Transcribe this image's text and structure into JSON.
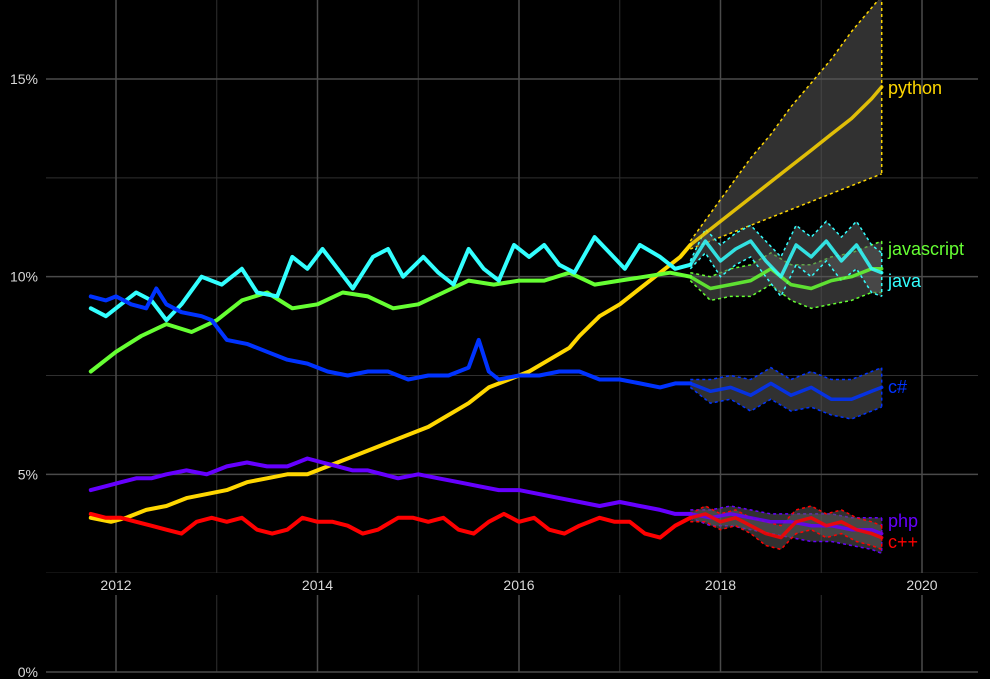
{
  "chart_data": {
    "type": "line",
    "title": "",
    "xlabel": "",
    "ylabel": "",
    "xlim": [
      2011.5,
      2020.5
    ],
    "ylim": [
      0,
      17.2
    ],
    "x_ticks": [
      2012,
      2014,
      2016,
      2018,
      2020
    ],
    "x_tick_labels": [
      "2012",
      "2014",
      "2016",
      "2018",
      "2020"
    ],
    "y_ticks": [
      0,
      5,
      10,
      15
    ],
    "y_tick_labels": [
      "0%",
      "5%",
      "10%",
      "15%"
    ],
    "y_minor_ticks": [
      2.5,
      7.5,
      12.5
    ],
    "x_minor_ticks": [
      2013,
      2015,
      2017,
      2019
    ],
    "grid": true,
    "background": "#000000",
    "forecast_start": 2017.7,
    "series": [
      {
        "name": "python",
        "color": "#ffd700",
        "x": [
          2011.75,
          2011.95,
          2012.1,
          2012.3,
          2012.5,
          2012.7,
          2012.9,
          2013.1,
          2013.3,
          2013.5,
          2013.7,
          2013.9,
          2014.1,
          2014.3,
          2014.5,
          2014.7,
          2014.9,
          2015.1,
          2015.3,
          2015.5,
          2015.7,
          2015.9,
          2016.1,
          2016.3,
          2016.5,
          2016.6,
          2016.8,
          2017.0,
          2017.2,
          2017.4,
          2017.6,
          2017.7
        ],
        "values": [
          3.9,
          3.8,
          3.9,
          4.1,
          4.2,
          4.4,
          4.5,
          4.6,
          4.8,
          4.9,
          5.0,
          5.0,
          5.2,
          5.4,
          5.6,
          5.8,
          6.0,
          6.2,
          6.5,
          6.8,
          7.2,
          7.4,
          7.6,
          7.9,
          8.2,
          8.5,
          9.0,
          9.3,
          9.7,
          10.1,
          10.5,
          10.8
        ],
        "forecast": {
          "x": [
            2017.7,
            2017.9,
            2018.1,
            2018.3,
            2018.5,
            2018.7,
            2018.9,
            2019.1,
            2019.3,
            2019.5,
            2019.6
          ],
          "values": [
            10.8,
            11.2,
            11.6,
            12.0,
            12.4,
            12.8,
            13.2,
            13.6,
            14.0,
            14.5,
            14.8
          ],
          "upper": [
            10.9,
            11.6,
            12.3,
            13.0,
            13.6,
            14.3,
            14.9,
            15.5,
            16.2,
            16.8,
            17.1
          ],
          "lower": [
            10.7,
            10.9,
            11.1,
            11.3,
            11.5,
            11.7,
            11.9,
            12.1,
            12.3,
            12.5,
            12.6
          ]
        }
      },
      {
        "name": "javascript",
        "color": "#66ff33",
        "x": [
          2011.75,
          2012.0,
          2012.25,
          2012.5,
          2012.75,
          2013.0,
          2013.25,
          2013.5,
          2013.75,
          2014.0,
          2014.25,
          2014.5,
          2014.75,
          2015.0,
          2015.25,
          2015.5,
          2015.75,
          2016.0,
          2016.25,
          2016.5,
          2016.75,
          2017.0,
          2017.25,
          2017.5,
          2017.7
        ],
        "values": [
          7.6,
          8.1,
          8.5,
          8.8,
          8.6,
          8.9,
          9.4,
          9.6,
          9.2,
          9.3,
          9.6,
          9.5,
          9.2,
          9.3,
          9.6,
          9.9,
          9.8,
          9.9,
          9.9,
          10.1,
          9.8,
          9.9,
          10.0,
          10.1,
          10.0
        ],
        "forecast": {
          "x": [
            2017.7,
            2017.9,
            2018.1,
            2018.3,
            2018.5,
            2018.7,
            2018.9,
            2019.1,
            2019.3,
            2019.5,
            2019.6
          ],
          "values": [
            10.0,
            9.7,
            9.8,
            9.9,
            10.2,
            9.8,
            9.7,
            9.9,
            10.0,
            10.2,
            10.2
          ],
          "upper": [
            10.1,
            10.0,
            10.2,
            10.3,
            10.6,
            10.3,
            10.3,
            10.5,
            10.6,
            10.8,
            10.9
          ],
          "lower": [
            9.9,
            9.4,
            9.5,
            9.5,
            9.8,
            9.4,
            9.2,
            9.3,
            9.4,
            9.6,
            9.6
          ]
        }
      },
      {
        "name": "java",
        "color": "#33ffff",
        "x": [
          2011.75,
          2011.9,
          2012.05,
          2012.2,
          2012.35,
          2012.5,
          2012.65,
          2012.85,
          2013.05,
          2013.25,
          2013.4,
          2013.6,
          2013.75,
          2013.9,
          2014.05,
          2014.2,
          2014.35,
          2014.55,
          2014.7,
          2014.85,
          2015.05,
          2015.2,
          2015.35,
          2015.5,
          2015.65,
          2015.8,
          2015.95,
          2016.1,
          2016.25,
          2016.4,
          2016.55,
          2016.75,
          2016.9,
          2017.05,
          2017.2,
          2017.4,
          2017.55,
          2017.7
        ],
        "values": [
          9.2,
          9.0,
          9.3,
          9.6,
          9.4,
          8.9,
          9.3,
          10.0,
          9.8,
          10.2,
          9.6,
          9.5,
          10.5,
          10.2,
          10.7,
          10.2,
          9.7,
          10.5,
          10.7,
          10.0,
          10.5,
          10.1,
          9.8,
          10.7,
          10.2,
          9.9,
          10.8,
          10.5,
          10.8,
          10.3,
          10.1,
          11.0,
          10.6,
          10.2,
          10.8,
          10.5,
          10.2,
          10.3
        ],
        "forecast": {
          "x": [
            2017.7,
            2017.85,
            2018.0,
            2018.15,
            2018.3,
            2018.45,
            2018.6,
            2018.75,
            2018.9,
            2019.05,
            2019.2,
            2019.35,
            2019.5,
            2019.6
          ],
          "values": [
            10.3,
            10.9,
            10.4,
            10.7,
            10.9,
            10.4,
            10.0,
            10.8,
            10.5,
            10.9,
            10.4,
            10.8,
            10.2,
            10.1
          ],
          "upper": [
            10.4,
            11.2,
            10.8,
            11.1,
            11.3,
            10.9,
            10.5,
            11.3,
            11.0,
            11.4,
            11.0,
            11.4,
            10.8,
            10.6
          ],
          "lower": [
            10.2,
            10.6,
            10.0,
            10.3,
            10.5,
            10.0,
            9.5,
            10.3,
            10.0,
            10.4,
            9.9,
            10.2,
            9.6,
            9.5
          ]
        }
      },
      {
        "name": "c#",
        "color": "#0033ff",
        "x": [
          2011.75,
          2011.9,
          2012.0,
          2012.15,
          2012.3,
          2012.4,
          2012.5,
          2012.65,
          2012.85,
          2012.95,
          2013.1,
          2013.3,
          2013.5,
          2013.7,
          2013.9,
          2014.1,
          2014.3,
          2014.5,
          2014.7,
          2014.9,
          2015.1,
          2015.3,
          2015.5,
          2015.6,
          2015.7,
          2015.8,
          2016.0,
          2016.2,
          2016.4,
          2016.6,
          2016.8,
          2017.0,
          2017.2,
          2017.4,
          2017.55,
          2017.7
        ],
        "values": [
          9.5,
          9.4,
          9.5,
          9.3,
          9.2,
          9.7,
          9.3,
          9.1,
          9.0,
          8.9,
          8.4,
          8.3,
          8.1,
          7.9,
          7.8,
          7.6,
          7.5,
          7.6,
          7.6,
          7.4,
          7.5,
          7.5,
          7.7,
          8.4,
          7.6,
          7.4,
          7.5,
          7.5,
          7.6,
          7.6,
          7.4,
          7.4,
          7.3,
          7.2,
          7.3,
          7.3
        ],
        "forecast": {
          "x": [
            2017.7,
            2017.9,
            2018.1,
            2018.3,
            2018.5,
            2018.7,
            2018.9,
            2019.1,
            2019.3,
            2019.5,
            2019.6
          ],
          "values": [
            7.3,
            7.1,
            7.2,
            7.0,
            7.3,
            7.0,
            7.2,
            6.9,
            6.9,
            7.1,
            7.2
          ],
          "upper": [
            7.4,
            7.4,
            7.5,
            7.4,
            7.7,
            7.4,
            7.6,
            7.4,
            7.4,
            7.6,
            7.7
          ],
          "lower": [
            7.2,
            6.8,
            6.9,
            6.6,
            6.9,
            6.6,
            6.7,
            6.5,
            6.4,
            6.6,
            6.7
          ]
        }
      },
      {
        "name": "php",
        "color": "#6600ff",
        "x": [
          2011.75,
          2011.9,
          2012.05,
          2012.2,
          2012.35,
          2012.5,
          2012.7,
          2012.9,
          2013.1,
          2013.3,
          2013.5,
          2013.7,
          2013.8,
          2013.9,
          2014.05,
          2014.2,
          2014.35,
          2014.5,
          2014.65,
          2014.8,
          2015.0,
          2015.2,
          2015.4,
          2015.6,
          2015.8,
          2016.0,
          2016.2,
          2016.4,
          2016.6,
          2016.8,
          2017.0,
          2017.2,
          2017.4,
          2017.55,
          2017.7
        ],
        "values": [
          4.6,
          4.7,
          4.8,
          4.9,
          4.9,
          5.0,
          5.1,
          5.0,
          5.2,
          5.3,
          5.2,
          5.2,
          5.3,
          5.4,
          5.3,
          5.2,
          5.1,
          5.1,
          5.0,
          4.9,
          5.0,
          4.9,
          4.8,
          4.7,
          4.6,
          4.6,
          4.5,
          4.4,
          4.3,
          4.2,
          4.3,
          4.2,
          4.1,
          4.0,
          4.0
        ],
        "forecast": {
          "x": [
            2017.7,
            2017.9,
            2018.1,
            2018.3,
            2018.5,
            2018.7,
            2018.9,
            2019.1,
            2019.3,
            2019.5,
            2019.6
          ],
          "values": [
            4.0,
            3.9,
            4.0,
            3.9,
            3.8,
            3.8,
            3.7,
            3.7,
            3.6,
            3.6,
            3.5
          ],
          "upper": [
            4.1,
            4.1,
            4.2,
            4.1,
            4.0,
            4.0,
            4.0,
            4.0,
            3.9,
            3.9,
            3.9
          ],
          "lower": [
            3.9,
            3.7,
            3.7,
            3.6,
            3.5,
            3.4,
            3.3,
            3.3,
            3.2,
            3.1,
            3.0
          ]
        }
      },
      {
        "name": "c++",
        "color": "#ff0000",
        "x": [
          2011.75,
          2011.9,
          2012.05,
          2012.2,
          2012.35,
          2012.5,
          2012.65,
          2012.8,
          2012.95,
          2013.1,
          2013.25,
          2013.4,
          2013.55,
          2013.7,
          2013.85,
          2014.0,
          2014.15,
          2014.3,
          2014.45,
          2014.6,
          2014.8,
          2014.95,
          2015.1,
          2015.25,
          2015.4,
          2015.55,
          2015.7,
          2015.85,
          2016.0,
          2016.15,
          2016.3,
          2016.45,
          2016.6,
          2016.8,
          2016.95,
          2017.1,
          2017.25,
          2017.4,
          2017.55,
          2017.7
        ],
        "values": [
          4.0,
          3.9,
          3.9,
          3.8,
          3.7,
          3.6,
          3.5,
          3.8,
          3.9,
          3.8,
          3.9,
          3.6,
          3.5,
          3.6,
          3.9,
          3.8,
          3.8,
          3.7,
          3.5,
          3.6,
          3.9,
          3.9,
          3.8,
          3.9,
          3.6,
          3.5,
          3.8,
          4.0,
          3.8,
          3.9,
          3.6,
          3.5,
          3.7,
          3.9,
          3.8,
          3.8,
          3.5,
          3.4,
          3.7,
          3.9
        ],
        "forecast": {
          "x": [
            2017.7,
            2017.85,
            2018.0,
            2018.15,
            2018.3,
            2018.45,
            2018.6,
            2018.75,
            2018.9,
            2019.05,
            2019.2,
            2019.35,
            2019.5,
            2019.6
          ],
          "values": [
            3.9,
            4.0,
            3.8,
            3.9,
            3.7,
            3.5,
            3.4,
            3.8,
            3.9,
            3.7,
            3.8,
            3.6,
            3.5,
            3.4
          ],
          "upper": [
            4.0,
            4.2,
            4.0,
            4.1,
            3.9,
            3.8,
            3.7,
            4.1,
            4.2,
            4.0,
            4.1,
            3.9,
            3.8,
            3.7
          ],
          "lower": [
            3.8,
            3.8,
            3.6,
            3.7,
            3.5,
            3.2,
            3.1,
            3.5,
            3.6,
            3.4,
            3.5,
            3.3,
            3.2,
            3.1
          ]
        }
      }
    ]
  }
}
